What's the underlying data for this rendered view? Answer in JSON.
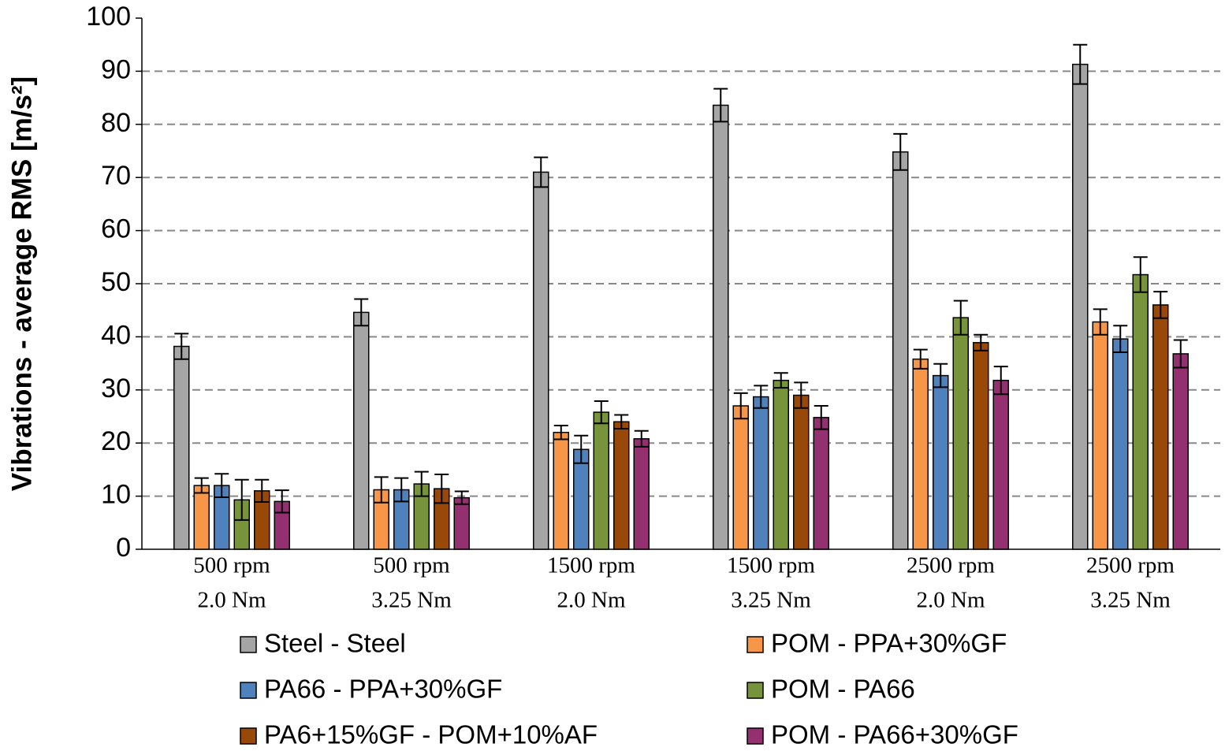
{
  "chart_data": {
    "type": "bar",
    "y_label": "Vibrations - average RMS [m/s²]",
    "categories": [
      [
        "500 rpm",
        "2.0 Nm"
      ],
      [
        "500 rpm",
        "3.25 Nm"
      ],
      [
        "1500 rpm",
        "2.0 Nm"
      ],
      [
        "1500 rpm",
        "3.25 Nm"
      ],
      [
        "2500 rpm",
        "2.0 Nm"
      ],
      [
        "2500 rpm",
        "3.25 Nm"
      ]
    ],
    "series": [
      {
        "name": "Steel - Steel",
        "color": "#a5a5a5",
        "values": [
          38.2,
          44.6,
          71.0,
          83.6,
          74.8,
          91.3
        ],
        "errors": [
          2.4,
          2.5,
          2.8,
          3.1,
          3.4,
          3.7
        ]
      },
      {
        "name": "POM - PPA+30%GF",
        "color": "#f79646",
        "values": [
          12.0,
          11.2,
          22.0,
          27.0,
          35.8,
          42.8
        ],
        "errors": [
          1.4,
          2.4,
          1.3,
          2.4,
          1.8,
          2.4
        ]
      },
      {
        "name": "PA66 - PPA+30%GF",
        "color": "#4f81bd",
        "values": [
          12.0,
          11.2,
          18.8,
          28.7,
          32.7,
          39.6
        ],
        "errors": [
          2.2,
          2.2,
          2.6,
          2.1,
          2.2,
          2.5
        ]
      },
      {
        "name": "POM - PA66",
        "color": "#77933c",
        "values": [
          9.3,
          12.3,
          25.8,
          31.8,
          43.6,
          51.7
        ],
        "errors": [
          3.8,
          2.3,
          2.1,
          1.4,
          3.2,
          3.3
        ]
      },
      {
        "name": "PA6+15%GF - POM+10%AF",
        "color": "#984807",
        "values": [
          11.0,
          11.4,
          24.0,
          29.0,
          38.9,
          46.0
        ],
        "errors": [
          2.1,
          2.7,
          1.3,
          2.4,
          1.5,
          2.5
        ]
      },
      {
        "name": "POM - PA66+30%GF",
        "color": "#953070",
        "values": [
          9.0,
          9.7,
          20.8,
          24.8,
          31.8,
          36.8
        ],
        "errors": [
          2.1,
          1.2,
          1.5,
          2.2,
          2.6,
          2.6
        ]
      }
    ],
    "ylim": [
      0,
      100
    ],
    "yticks": [
      0,
      10,
      20,
      30,
      40,
      50,
      60,
      70,
      80,
      90,
      100
    ],
    "grid": true
  }
}
